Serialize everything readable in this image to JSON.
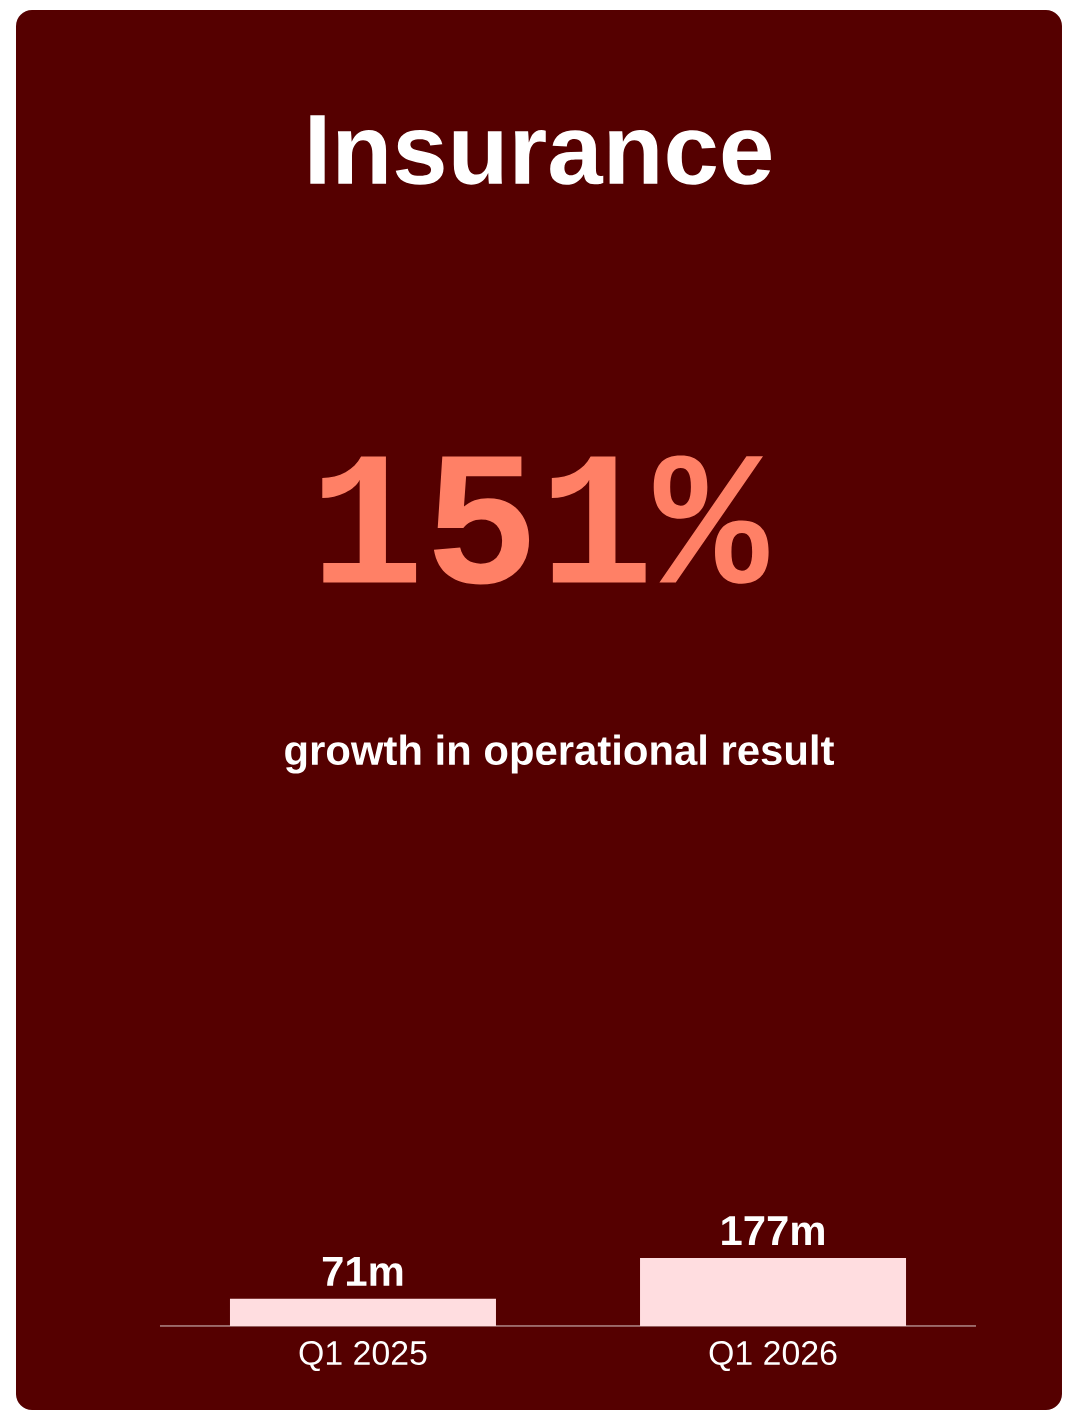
{
  "chart_data": {
    "type": "bar",
    "title": "Insurance",
    "annotations": [
      "151%",
      "growth in operational result"
    ],
    "categories": [
      "Q1 2025",
      "Q1 2026"
    ],
    "values": [
      71,
      177
    ],
    "value_labels": [
      "71m",
      "177m"
    ],
    "color": "#ffdde0"
  }
}
